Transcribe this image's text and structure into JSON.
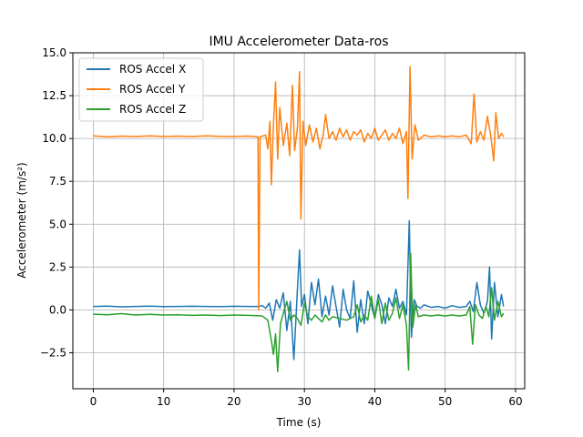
{
  "chart_data": {
    "type": "line",
    "title": "IMU Accelerometer Data-ros",
    "xlabel": "Time (s)",
    "ylabel": "Accelerometer (m/s²)",
    "xlim": [
      -2.9,
      61.3
    ],
    "ylim": [
      -4.6,
      15.0
    ],
    "xticks": [
      0,
      10,
      20,
      30,
      40,
      50,
      60
    ],
    "yticks": [
      -2.5,
      0.0,
      2.5,
      5.0,
      7.5,
      10.0,
      12.5,
      15.0
    ],
    "xtick_labels": [
      "0",
      "10",
      "20",
      "30",
      "40",
      "50",
      "60"
    ],
    "ytick_labels": [
      "−2.5",
      "0.0",
      "2.5",
      "5.0",
      "7.5",
      "10.0",
      "12.5",
      "15.0"
    ],
    "grid": true,
    "legend_position": "top-left",
    "series": [
      {
        "name": "ROS Accel X",
        "color": "#1f77b4",
        "points": [
          [
            0,
            0.2
          ],
          [
            2,
            0.22
          ],
          [
            4,
            0.18
          ],
          [
            6,
            0.2
          ],
          [
            8,
            0.22
          ],
          [
            10,
            0.19
          ],
          [
            12,
            0.2
          ],
          [
            14,
            0.21
          ],
          [
            16,
            0.2
          ],
          [
            18,
            0.19
          ],
          [
            20,
            0.21
          ],
          [
            22,
            0.2
          ],
          [
            23.5,
            0.2
          ],
          [
            24,
            0.25
          ],
          [
            24.5,
            0.1
          ],
          [
            25,
            0.4
          ],
          [
            25.5,
            -0.6
          ],
          [
            26,
            0.6
          ],
          [
            26.5,
            0.1
          ],
          [
            27,
            1.0
          ],
          [
            27.5,
            -1.2
          ],
          [
            28,
            0.5
          ],
          [
            28.5,
            -2.9
          ],
          [
            29,
            1.2
          ],
          [
            29.3,
            3.5
          ],
          [
            29.6,
            0.2
          ],
          [
            30,
            0.9
          ],
          [
            30.5,
            -0.8
          ],
          [
            31,
            1.6
          ],
          [
            31.5,
            0.3
          ],
          [
            32,
            1.8
          ],
          [
            32.5,
            -0.4
          ],
          [
            33,
            0.8
          ],
          [
            33.5,
            -0.3
          ],
          [
            34,
            1.4
          ],
          [
            34.5,
            0.2
          ],
          [
            35,
            -1.0
          ],
          [
            35.5,
            1.2
          ],
          [
            36,
            0.0
          ],
          [
            36.5,
            -0.5
          ],
          [
            37,
            1.7
          ],
          [
            37.5,
            -1.3
          ],
          [
            38,
            0.6
          ],
          [
            38.5,
            -0.8
          ],
          [
            39,
            1.1
          ],
          [
            39.5,
            0.3
          ],
          [
            40,
            -0.5
          ],
          [
            40.5,
            0.9
          ],
          [
            41,
            0.3
          ],
          [
            41.5,
            -0.8
          ],
          [
            42,
            0.7
          ],
          [
            42.5,
            0.2
          ],
          [
            43,
            1.2
          ],
          [
            43.5,
            0.1
          ],
          [
            44,
            0.5
          ],
          [
            44.5,
            -0.3
          ],
          [
            44.9,
            5.2
          ],
          [
            45.2,
            -1.6
          ],
          [
            45.6,
            0.6
          ],
          [
            46,
            0.2
          ],
          [
            46.5,
            0.1
          ],
          [
            47,
            0.3
          ],
          [
            48,
            0.15
          ],
          [
            49,
            0.2
          ],
          [
            50,
            0.1
          ],
          [
            51,
            0.25
          ],
          [
            52,
            0.15
          ],
          [
            53,
            0.2
          ],
          [
            53.5,
            0.5
          ],
          [
            54,
            -0.1
          ],
          [
            54.5,
            1.6
          ],
          [
            55,
            0.3
          ],
          [
            55.5,
            -0.2
          ],
          [
            56,
            0.5
          ],
          [
            56.3,
            2.5
          ],
          [
            56.6,
            -1.7
          ],
          [
            57,
            1.6
          ],
          [
            57.5,
            -0.4
          ],
          [
            58,
            0.9
          ],
          [
            58.3,
            0.2
          ]
        ]
      },
      {
        "name": "ROS Accel Y",
        "color": "#ff7f0e",
        "points": [
          [
            0,
            10.15
          ],
          [
            2,
            10.1
          ],
          [
            4,
            10.14
          ],
          [
            6,
            10.12
          ],
          [
            8,
            10.15
          ],
          [
            10,
            10.12
          ],
          [
            12,
            10.14
          ],
          [
            14,
            10.12
          ],
          [
            16,
            10.15
          ],
          [
            18,
            10.13
          ],
          [
            20,
            10.12
          ],
          [
            22,
            10.14
          ],
          [
            23.4,
            10.1
          ],
          [
            23.5,
            0.0
          ],
          [
            23.7,
            10.1
          ],
          [
            24.5,
            10.2
          ],
          [
            24.8,
            9.4
          ],
          [
            25.1,
            11.0
          ],
          [
            25.3,
            7.3
          ],
          [
            25.6,
            10.8
          ],
          [
            25.9,
            13.3
          ],
          [
            26.2,
            8.8
          ],
          [
            26.5,
            11.8
          ],
          [
            27,
            9.6
          ],
          [
            27.5,
            10.9
          ],
          [
            27.9,
            9.0
          ],
          [
            28.3,
            13.1
          ],
          [
            28.6,
            9.3
          ],
          [
            29,
            10.6
          ],
          [
            29.3,
            13.9
          ],
          [
            29.5,
            5.3
          ],
          [
            29.8,
            11.0
          ],
          [
            30.2,
            9.6
          ],
          [
            30.7,
            10.8
          ],
          [
            31.2,
            9.8
          ],
          [
            31.7,
            10.6
          ],
          [
            32.2,
            9.4
          ],
          [
            32.7,
            10.3
          ],
          [
            33,
            11.4
          ],
          [
            33.5,
            10.0
          ],
          [
            34,
            10.4
          ],
          [
            34.5,
            9.9
          ],
          [
            35,
            10.6
          ],
          [
            35.5,
            10.1
          ],
          [
            36,
            10.5
          ],
          [
            36.5,
            9.9
          ],
          [
            37,
            10.4
          ],
          [
            37.5,
            10.2
          ],
          [
            38,
            10.5
          ],
          [
            38.5,
            9.8
          ],
          [
            39,
            10.3
          ],
          [
            39.5,
            10.0
          ],
          [
            40,
            10.6
          ],
          [
            40.5,
            9.9
          ],
          [
            41,
            10.2
          ],
          [
            41.5,
            10.5
          ],
          [
            42,
            9.9
          ],
          [
            42.5,
            10.3
          ],
          [
            43,
            10.0
          ],
          [
            43.5,
            10.6
          ],
          [
            44,
            9.7
          ],
          [
            44.5,
            10.4
          ],
          [
            44.7,
            6.5
          ],
          [
            45,
            14.2
          ],
          [
            45.3,
            8.8
          ],
          [
            45.7,
            10.8
          ],
          [
            46.2,
            9.9
          ],
          [
            47,
            10.2
          ],
          [
            48,
            10.1
          ],
          [
            49,
            10.15
          ],
          [
            50,
            10.1
          ],
          [
            51,
            10.15
          ],
          [
            52,
            10.1
          ],
          [
            53,
            10.2
          ],
          [
            53.7,
            9.7
          ],
          [
            54.1,
            12.6
          ],
          [
            54.5,
            9.8
          ],
          [
            55,
            10.4
          ],
          [
            55.5,
            9.9
          ],
          [
            56,
            11.3
          ],
          [
            56.5,
            10.1
          ],
          [
            56.9,
            8.7
          ],
          [
            57.2,
            11.5
          ],
          [
            57.6,
            10.0
          ],
          [
            58,
            10.3
          ],
          [
            58.3,
            10.1
          ]
        ]
      },
      {
        "name": "ROS Accel Z",
        "color": "#2ca02c",
        "points": [
          [
            0,
            -0.25
          ],
          [
            2,
            -0.28
          ],
          [
            4,
            -0.22
          ],
          [
            6,
            -0.3
          ],
          [
            8,
            -0.26
          ],
          [
            10,
            -0.3
          ],
          [
            12,
            -0.28
          ],
          [
            14,
            -0.32
          ],
          [
            16,
            -0.3
          ],
          [
            18,
            -0.33
          ],
          [
            20,
            -0.3
          ],
          [
            22,
            -0.32
          ],
          [
            24,
            -0.35
          ],
          [
            24.8,
            -0.6
          ],
          [
            25.3,
            -1.8
          ],
          [
            25.6,
            -2.6
          ],
          [
            25.9,
            -1.4
          ],
          [
            26.2,
            -3.6
          ],
          [
            26.6,
            -0.8
          ],
          [
            27,
            -0.2
          ],
          [
            27.5,
            0.5
          ],
          [
            28,
            -0.6
          ],
          [
            28.5,
            -0.3
          ],
          [
            29,
            -0.5
          ],
          [
            29.5,
            -0.9
          ],
          [
            30,
            0.4
          ],
          [
            30.5,
            -0.4
          ],
          [
            31,
            -0.6
          ],
          [
            31.5,
            -0.3
          ],
          [
            32,
            -0.5
          ],
          [
            32.5,
            -0.7
          ],
          [
            33,
            -0.3
          ],
          [
            33.5,
            -0.6
          ],
          [
            34,
            -0.4
          ],
          [
            35,
            -0.5
          ],
          [
            36,
            -0.6
          ],
          [
            37,
            -0.4
          ],
          [
            37.5,
            0.3
          ],
          [
            38,
            -0.7
          ],
          [
            38.5,
            -0.3
          ],
          [
            39,
            -0.6
          ],
          [
            39.5,
            0.8
          ],
          [
            40,
            -0.5
          ],
          [
            40.5,
            0.6
          ],
          [
            41,
            -0.8
          ],
          [
            41.5,
            0.4
          ],
          [
            42,
            -0.6
          ],
          [
            42.5,
            -0.2
          ],
          [
            43,
            0.7
          ],
          [
            43.5,
            -0.5
          ],
          [
            44,
            0.3
          ],
          [
            44.5,
            -0.9
          ],
          [
            44.8,
            -3.5
          ],
          [
            45.1,
            3.3
          ],
          [
            45.4,
            -1.0
          ],
          [
            45.8,
            0.3
          ],
          [
            46.2,
            -0.4
          ],
          [
            47,
            -0.3
          ],
          [
            48,
            -0.35
          ],
          [
            49,
            -0.3
          ],
          [
            50,
            -0.35
          ],
          [
            51,
            -0.3
          ],
          [
            52,
            -0.35
          ],
          [
            53,
            -0.3
          ],
          [
            53.5,
            0.2
          ],
          [
            53.9,
            -2.0
          ],
          [
            54.3,
            0.3
          ],
          [
            54.8,
            -0.3
          ],
          [
            55.3,
            -0.5
          ],
          [
            55.8,
            0.2
          ],
          [
            56.2,
            -0.4
          ],
          [
            56.6,
            1.3
          ],
          [
            57,
            -0.6
          ],
          [
            57.5,
            0.5
          ],
          [
            58,
            -0.4
          ],
          [
            58.3,
            -0.2
          ]
        ]
      }
    ]
  }
}
